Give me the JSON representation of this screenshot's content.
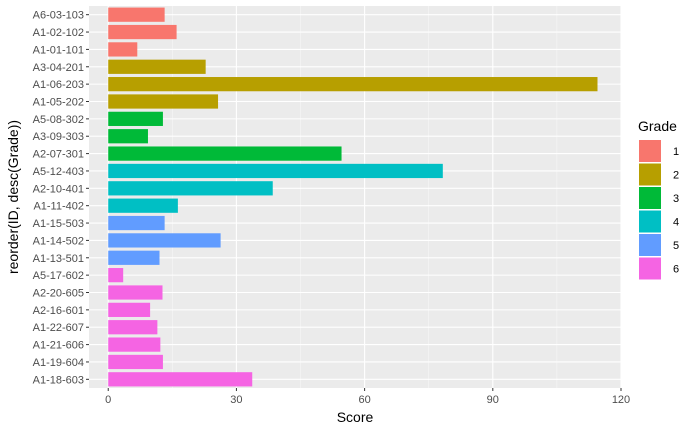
{
  "chart_data": {
    "type": "bar",
    "orientation": "horizontal",
    "xlabel": "Score",
    "ylabel": "reorder(ID, desc(Grade))",
    "xlim": [
      -4.5,
      120
    ],
    "x_ticks": [
      0,
      30,
      60,
      90,
      120
    ],
    "grid": true,
    "legend": {
      "title": "Grade",
      "placement": "right",
      "entries": [
        {
          "label": "1",
          "color": "#F8766D"
        },
        {
          "label": "2",
          "color": "#B79F00"
        },
        {
          "label": "3",
          "color": "#00BA38"
        },
        {
          "label": "4",
          "color": "#00BFC4"
        },
        {
          "label": "5",
          "color": "#619CFF"
        },
        {
          "label": "6",
          "color": "#F564E3"
        }
      ]
    },
    "categories": [
      "A6-03-103",
      "A1-02-102",
      "A1-01-101",
      "A3-04-201",
      "A1-06-203",
      "A1-05-202",
      "A5-08-302",
      "A3-09-303",
      "A2-07-301",
      "A5-12-403",
      "A2-10-401",
      "A1-11-402",
      "A1-15-503",
      "A1-14-502",
      "A1-13-501",
      "A5-17-602",
      "A2-20-605",
      "A2-16-601",
      "A1-22-607",
      "A1-21-606",
      "A1-19-604",
      "A1-18-603"
    ],
    "values": [
      13.2,
      16,
      6.8,
      22.8,
      114.5,
      25.7,
      12.8,
      9.3,
      54.6,
      78.3,
      38.5,
      16.3,
      13.2,
      26.3,
      12,
      3.5,
      12.7,
      9.8,
      11.5,
      12.2,
      12.8,
      33.7
    ],
    "grades": [
      1,
      1,
      1,
      2,
      2,
      2,
      3,
      3,
      3,
      4,
      4,
      4,
      5,
      5,
      5,
      6,
      6,
      6,
      6,
      6,
      6,
      6
    ]
  }
}
